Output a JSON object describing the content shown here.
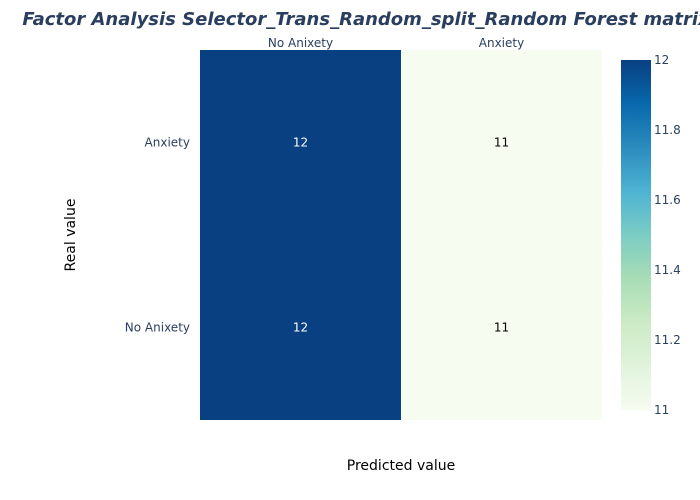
{
  "chart_data": {
    "type": "heatmap",
    "title": "Factor Analysis Selector_Trans_Random_split_Random Forest matrix",
    "xlabel": "Predicted value",
    "ylabel": "Real value",
    "x_categories": [
      "No Anixety",
      "Anxiety"
    ],
    "y_categories": [
      "Anxiety",
      "No Anixety"
    ],
    "z": [
      [
        12,
        11
      ],
      [
        12,
        11
      ]
    ],
    "zlim": [
      11,
      12
    ],
    "colorbar_ticks": [
      "12",
      "11.8",
      "11.6",
      "11.4",
      "11.2",
      "11"
    ],
    "colorbar_tick_values": [
      12,
      11.8,
      11.6,
      11.4,
      11.2,
      11
    ],
    "colorscale": [
      "#f7fcf0",
      "#e0f3db",
      "#ccebc5",
      "#a8ddb5",
      "#7bccc4",
      "#4eb3d3",
      "#2b8cbe",
      "#0868ac",
      "#084081"
    ],
    "grid": false
  }
}
